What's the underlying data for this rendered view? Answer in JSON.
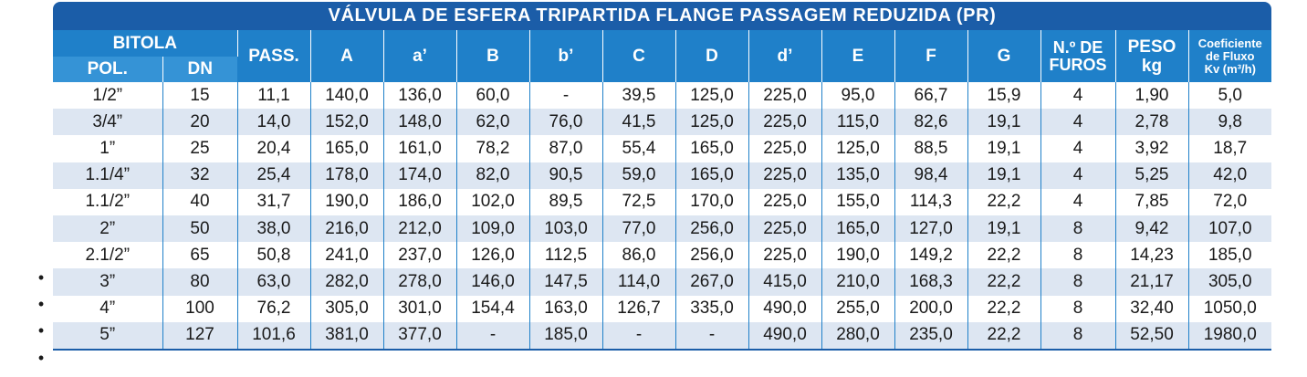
{
  "title": "VÁLVULA DE ESFERA TRIPARTIDA FLANGE PASSAGEM REDUZIDA (PR)",
  "header": {
    "bitola": "BITOLA",
    "pol": "POL.",
    "dn": "DN",
    "pass": "PASS.",
    "a": "A",
    "a_prime": "a’",
    "b": "B",
    "b_prime": "b’",
    "c": "C",
    "d": "D",
    "d_prime": "d’",
    "e": "E",
    "f": "F",
    "g": "G",
    "furos_line1": "N.º DE",
    "furos_line2": "FUROS",
    "peso_line1": "PESO",
    "peso_line2": "kg",
    "kv_line1": "Coeficiente",
    "kv_line2": "de Fluxo",
    "kv_line3": "Kv (m³/h)"
  },
  "rows": [
    [
      "1/2”",
      "15",
      "11,1",
      "140,0",
      "136,0",
      "60,0",
      "-",
      "39,5",
      "125,0",
      "225,0",
      "95,0",
      "66,7",
      "15,9",
      "4",
      "1,90",
      "5,0"
    ],
    [
      "3/4”",
      "20",
      "14,0",
      "152,0",
      "148,0",
      "62,0",
      "76,0",
      "41,5",
      "125,0",
      "225,0",
      "115,0",
      "82,6",
      "19,1",
      "4",
      "2,78",
      "9,8"
    ],
    [
      "1”",
      "25",
      "20,4",
      "165,0",
      "161,0",
      "78,2",
      "87,0",
      "55,4",
      "165,0",
      "225,0",
      "125,0",
      "88,5",
      "19,1",
      "4",
      "3,92",
      "18,7"
    ],
    [
      "1.1/4”",
      "32",
      "25,4",
      "178,0",
      "174,0",
      "82,0",
      "90,5",
      "59,0",
      "165,0",
      "225,0",
      "135,0",
      "98,4",
      "19,1",
      "4",
      "5,25",
      "42,0"
    ],
    [
      "1.1/2”",
      "40",
      "31,7",
      "190,0",
      "186,0",
      "102,0",
      "89,5",
      "72,5",
      "170,0",
      "225,0",
      "155,0",
      "114,3",
      "22,2",
      "4",
      "7,85",
      "72,0"
    ],
    [
      "2”",
      "50",
      "38,0",
      "216,0",
      "212,0",
      "109,0",
      "103,0",
      "77,0",
      "256,0",
      "225,0",
      "165,0",
      "127,0",
      "19,1",
      "8",
      "9,42",
      "107,0"
    ],
    [
      "2.1/2”",
      "65",
      "50,8",
      "241,0",
      "237,0",
      "126,0",
      "112,5",
      "86,0",
      "256,0",
      "225,0",
      "190,0",
      "149,2",
      "22,2",
      "8",
      "14,23",
      "185,0"
    ],
    [
      "3”",
      "80",
      "63,0",
      "282,0",
      "278,0",
      "146,0",
      "147,5",
      "114,0",
      "267,0",
      "415,0",
      "210,0",
      "168,3",
      "22,2",
      "8",
      "21,17",
      "305,0"
    ],
    [
      "4”",
      "100",
      "76,2",
      "305,0",
      "301,0",
      "154,4",
      "163,0",
      "126,7",
      "335,0",
      "490,0",
      "255,0",
      "200,0",
      "22,2",
      "8",
      "32,40",
      "1050,0"
    ],
    [
      "5”",
      "127",
      "101,6",
      "381,0",
      "377,0",
      "-",
      "185,0",
      "-",
      "-",
      "490,0",
      "280,0",
      "235,0",
      "22,2",
      "8",
      "52,50",
      "1980,0"
    ]
  ],
  "bullet_symbol": "•"
}
